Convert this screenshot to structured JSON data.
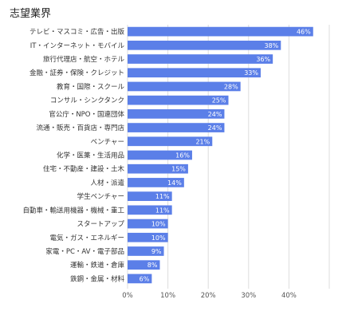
{
  "chart_data": {
    "type": "bar",
    "orientation": "horizontal",
    "title": "志望業界",
    "categories": [
      "テレビ・マスコミ・広告・出版",
      "IT・インターネット・モバイル",
      "旅行代理店・航空・ホテル",
      "金融・証券・保険・クレジット",
      "教育・国際・スクール",
      "コンサル・シンクタンク",
      "官公庁・NPO・国連団体",
      "流通・販売・百貨店・専門店",
      "ベンチャー",
      "化学・医薬・生活用品",
      "住宅・不動産・建設・土木",
      "人材・派遣",
      "学生ベンチャー",
      "自動車・輸送用機器・機械・重工",
      "スタートアップ",
      "電気・ガス・エネルギー",
      "家電・PC・AV・電子部品",
      "運輸・鉄道・倉庫",
      "鉄鋼・金属・材料"
    ],
    "values": [
      46,
      38,
      36,
      33,
      28,
      25,
      24,
      24,
      21,
      16,
      15,
      14,
      11,
      11,
      10,
      10,
      9,
      8,
      6
    ],
    "value_labels": [
      "46%",
      "38%",
      "36%",
      "33%",
      "28%",
      "25%",
      "24%",
      "24%",
      "21%",
      "16%",
      "15%",
      "14%",
      "11%",
      "11%",
      "10%",
      "10%",
      "9%",
      "8%",
      "6%"
    ],
    "xticks": [
      0,
      10,
      20,
      30,
      40
    ],
    "xtick_labels": [
      "0%",
      "10%",
      "20%",
      "30%",
      "40%"
    ],
    "xlim": [
      0,
      50
    ],
    "grid": true,
    "bar_color": "#5b7fe8",
    "grid_color": "#dddddd"
  }
}
